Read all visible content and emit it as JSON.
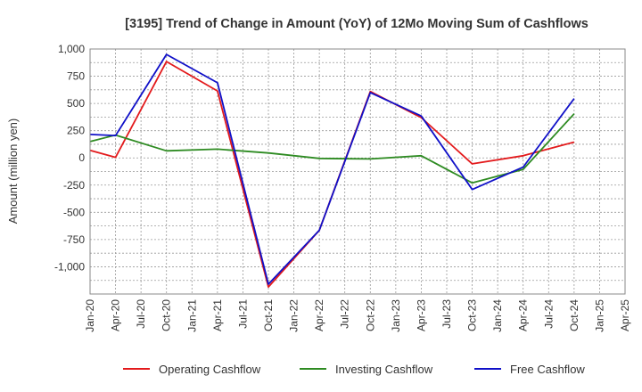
{
  "chart_data": {
    "type": "line",
    "title": "[3195]  Trend of Change in Amount (YoY) of 12Mo Moving Sum of Cashflows",
    "xlabel": "",
    "ylabel": "Amount (million yen)",
    "ylim": [
      -1250,
      1000
    ],
    "yticks": [
      1000,
      750,
      500,
      250,
      0,
      -250,
      -500,
      -750,
      -1000
    ],
    "ytick_labels": [
      "1,000",
      "750",
      "500",
      "250",
      "0",
      "-250",
      "-500",
      "-750",
      "-1,000"
    ],
    "categories": [
      "Jan-20",
      "Apr-20",
      "Jul-20",
      "Oct-20",
      "Jan-21",
      "Apr-21",
      "Jul-21",
      "Oct-21",
      "Jan-22",
      "Apr-22",
      "Jul-22",
      "Oct-22",
      "Jan-23",
      "Apr-23",
      "Jul-23",
      "Oct-23",
      "Jan-24",
      "Apr-24",
      "Jul-24",
      "Oct-24",
      "Jan-25",
      "Apr-25"
    ],
    "grid": true,
    "legend_position": "bottom",
    "series": [
      {
        "name": "Operating Cashflow",
        "color": "#e31a1c",
        "values": [
          70,
          5,
          null,
          885,
          null,
          615,
          null,
          -1185,
          null,
          -665,
          null,
          610,
          null,
          370,
          null,
          -55,
          null,
          20,
          null,
          145,
          null,
          null
        ]
      },
      {
        "name": "Investing Cashflow",
        "color": "#2e8b22",
        "values": [
          150,
          210,
          null,
          65,
          null,
          80,
          null,
          45,
          null,
          -5,
          null,
          -10,
          null,
          20,
          null,
          -230,
          null,
          -105,
          null,
          405,
          null,
          null
        ]
      },
      {
        "name": "Free Cashflow",
        "color": "#1010c8",
        "values": [
          215,
          205,
          null,
          950,
          null,
          690,
          null,
          -1160,
          null,
          -665,
          null,
          600,
          null,
          385,
          null,
          -290,
          null,
          -85,
          null,
          545,
          null,
          null
        ]
      }
    ]
  }
}
